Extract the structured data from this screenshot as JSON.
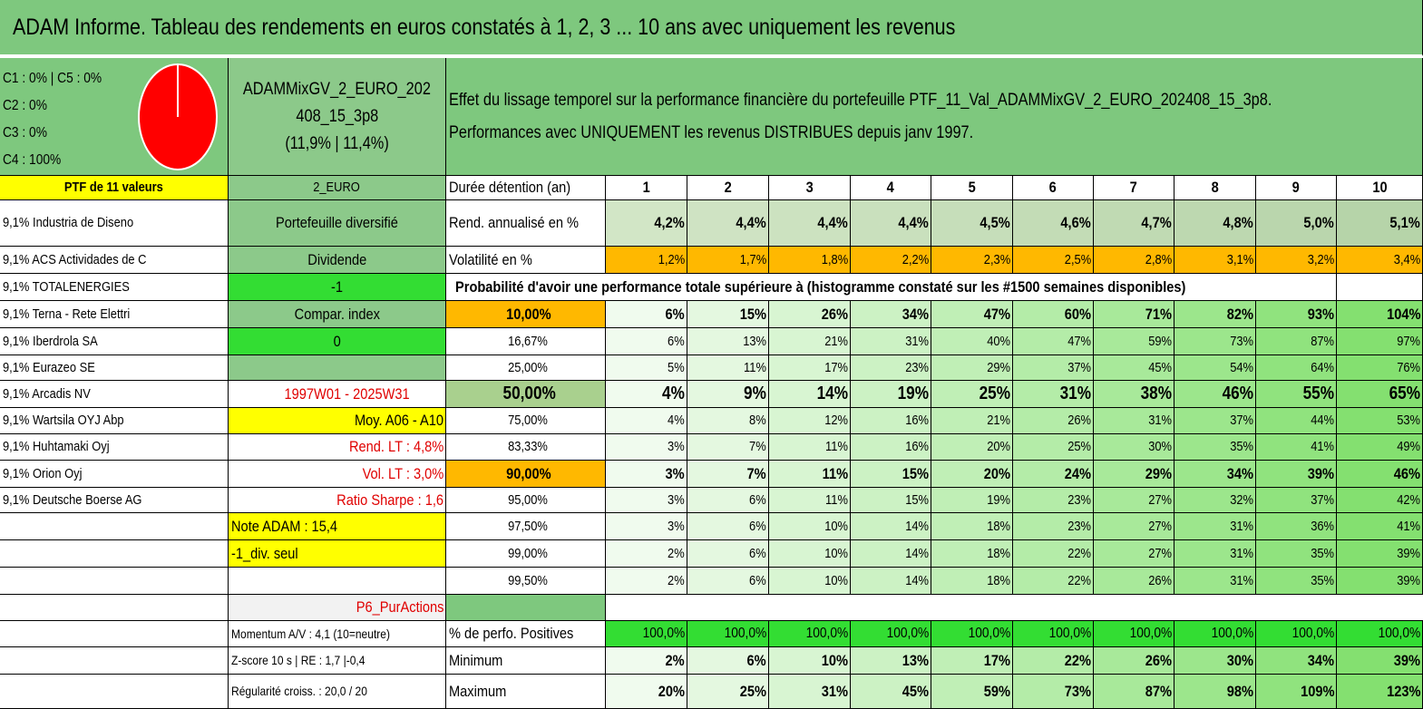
{
  "title": "ADAM Informe. Tableau des rendements en euros constatés à 1, 2, 3 ... 10 ans avec uniquement les revenus",
  "allocation": {
    "lines": [
      "C1 : 0% | C5 : 0%",
      "C2 : 0%",
      "C3 : 0%",
      "C4 : 100%"
    ],
    "pie_values": {
      "C1": 0,
      "C2": 0,
      "C3": 0,
      "C4": 100,
      "C5": 0
    },
    "pie_color": "#ff0000"
  },
  "portfolio": {
    "name_line1": "ADAMMixGV_2_EURO_202",
    "name_line2": "408_15_3p8",
    "name_line3": "(11,9% | 11,4%)"
  },
  "description": {
    "line1": "Effet du lissage temporel sur la performance financière du portefeuille PTF_11_Val_ADAMMixGV_2_EURO_202408_15_3p8.",
    "line2": "Performances avec UNIQUEMENT les revenus DISTRIBUES depuis janv 1997."
  },
  "holdings": {
    "header": "PTF de 11 valeurs",
    "items": [
      "9,1% Industria de Diseno",
      "9,1% ACS Actividades de C",
      "9,1% TOTALENERGIES",
      "9,1% Terna - Rete Elettri",
      "9,1% Iberdrola SA",
      "9,1% Eurazeo SE",
      "9,1% Arcadis NV",
      "9,1% Wartsila OYJ Abp",
      "9,1% Huhtamaki Oyj",
      "9,1% Orion Oyj",
      "9,1% Deutsche Boerse AG"
    ]
  },
  "info": {
    "currency": "2_EURO",
    "type": "Portefeuille diversifié",
    "style": "Dividende",
    "value_minus1": "-1",
    "compar": "Compar. index",
    "value_zero": "0",
    "period": "1997W01 - 2025W31",
    "moy": "Moy. A06 - A10",
    "rend_lt": "Rend. LT : 4,8%",
    "vol_lt": "Vol. LT : 3,0%",
    "sharpe": "Ratio Sharpe : 1,6",
    "note": "Note ADAM : 15,4",
    "div_seul": "-1_div. seul",
    "strategy": "P6_PurActions",
    "momentum": "Momentum A/V : 4,1 (10=neutre)",
    "zscore": "Z-score 10 s | RE : 1,7 |-0,4",
    "regularite": "Régularité croiss. : 20,0 / 20"
  },
  "table": {
    "duration_label": "Durée détention (an)",
    "years": [
      "1",
      "2",
      "3",
      "4",
      "5",
      "6",
      "7",
      "8",
      "9",
      "10"
    ],
    "rend_label": "Rend. annualisé en %",
    "rend": [
      "4,2%",
      "4,4%",
      "4,4%",
      "4,4%",
      "4,5%",
      "4,6%",
      "4,7%",
      "4,8%",
      "5,0%",
      "5,1%"
    ],
    "vol_label": "Volatilité en %",
    "vol": [
      "1,2%",
      "1,7%",
      "1,8%",
      "2,2%",
      "2,3%",
      "2,5%",
      "2,8%",
      "3,1%",
      "3,2%",
      "3,4%"
    ],
    "prob_header": "Probabilité d'avoir une performance totale supérieure à (histogramme constaté sur les #1500 semaines disponibles)",
    "prob_rows": [
      {
        "p": "10,00%",
        "v": [
          "6%",
          "15%",
          "26%",
          "34%",
          "47%",
          "60%",
          "71%",
          "82%",
          "93%",
          "104%"
        ]
      },
      {
        "p": "16,67%",
        "v": [
          "6%",
          "13%",
          "21%",
          "31%",
          "40%",
          "47%",
          "59%",
          "73%",
          "87%",
          "97%"
        ]
      },
      {
        "p": "25,00%",
        "v": [
          "5%",
          "11%",
          "17%",
          "23%",
          "29%",
          "37%",
          "45%",
          "54%",
          "64%",
          "76%"
        ]
      },
      {
        "p": "50,00%",
        "v": [
          "4%",
          "9%",
          "14%",
          "19%",
          "25%",
          "31%",
          "38%",
          "46%",
          "55%",
          "65%"
        ]
      },
      {
        "p": "75,00%",
        "v": [
          "4%",
          "8%",
          "12%",
          "16%",
          "21%",
          "26%",
          "31%",
          "37%",
          "44%",
          "53%"
        ]
      },
      {
        "p": "83,33%",
        "v": [
          "3%",
          "7%",
          "11%",
          "16%",
          "20%",
          "25%",
          "30%",
          "35%",
          "41%",
          "49%"
        ]
      },
      {
        "p": "90,00%",
        "v": [
          "3%",
          "7%",
          "11%",
          "15%",
          "20%",
          "24%",
          "29%",
          "34%",
          "39%",
          "46%"
        ]
      },
      {
        "p": "95,00%",
        "v": [
          "3%",
          "6%",
          "11%",
          "15%",
          "19%",
          "23%",
          "27%",
          "32%",
          "37%",
          "42%"
        ]
      },
      {
        "p": "97,50%",
        "v": [
          "3%",
          "6%",
          "10%",
          "14%",
          "18%",
          "23%",
          "27%",
          "31%",
          "36%",
          "41%"
        ]
      },
      {
        "p": "99,00%",
        "v": [
          "2%",
          "6%",
          "10%",
          "14%",
          "18%",
          "22%",
          "27%",
          "31%",
          "35%",
          "39%"
        ]
      },
      {
        "p": "99,50%",
        "v": [
          "2%",
          "6%",
          "10%",
          "14%",
          "18%",
          "22%",
          "26%",
          "31%",
          "35%",
          "39%"
        ]
      }
    ],
    "pos_label": "% de perfo. Positives",
    "pos": [
      "100,0%",
      "100,0%",
      "100,0%",
      "100,0%",
      "100,0%",
      "100,0%",
      "100,0%",
      "100,0%",
      "100,0%",
      "100,0%"
    ],
    "min_label": "Minimum",
    "min": [
      "2%",
      "6%",
      "10%",
      "13%",
      "17%",
      "22%",
      "26%",
      "30%",
      "34%",
      "39%"
    ],
    "max_label": "Maximum",
    "max": [
      "20%",
      "25%",
      "31%",
      "45%",
      "59%",
      "73%",
      "87%",
      "98%",
      "109%",
      "123%"
    ]
  }
}
